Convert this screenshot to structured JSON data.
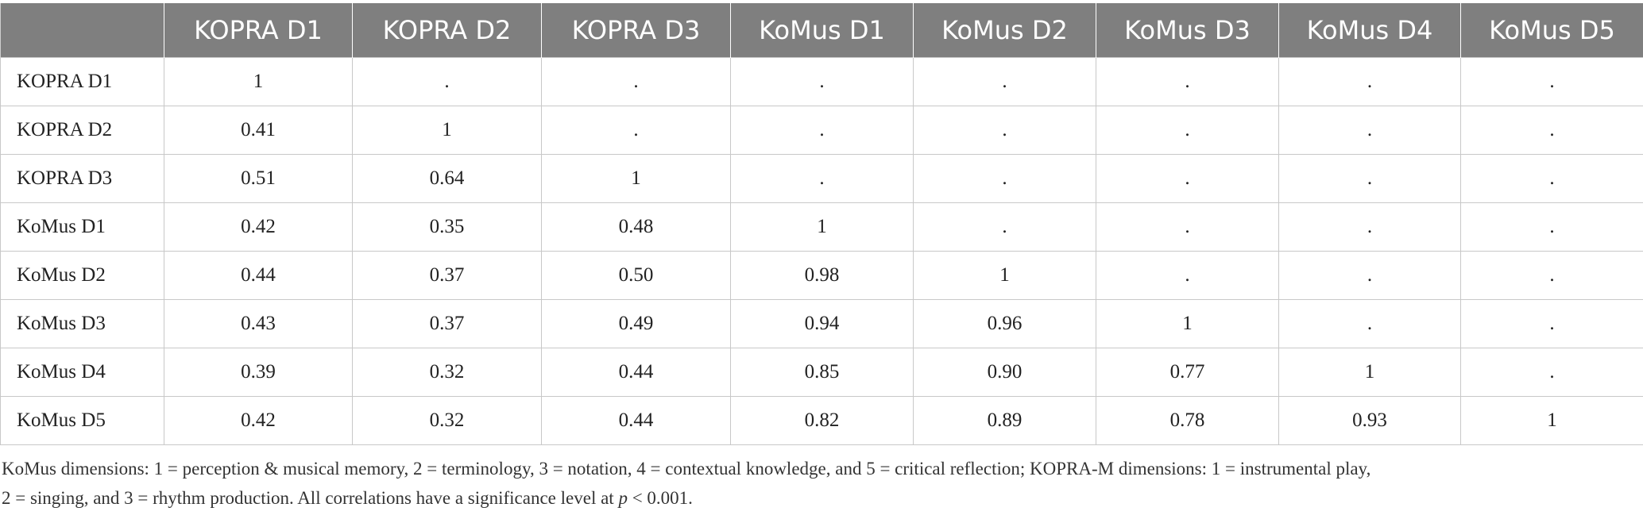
{
  "table": {
    "corner": "",
    "columns": [
      "KOPRA D1",
      "KOPRA D2",
      "KOPRA D3",
      "KoMus D1",
      "KoMus D2",
      "KoMus D3",
      "KoMus D4",
      "KoMus D5"
    ],
    "rows": [
      {
        "label": "KOPRA D1",
        "cells": [
          "1",
          ".",
          ".",
          ".",
          ".",
          ".",
          ".",
          "."
        ]
      },
      {
        "label": "KOPRA D2",
        "cells": [
          "0.41",
          "1",
          ".",
          ".",
          ".",
          ".",
          ".",
          "."
        ]
      },
      {
        "label": "KOPRA D3",
        "cells": [
          "0.51",
          "0.64",
          "1",
          ".",
          ".",
          ".",
          ".",
          "."
        ]
      },
      {
        "label": "KoMus D1",
        "cells": [
          "0.42",
          "0.35",
          "0.48",
          "1",
          ".",
          ".",
          ".",
          "."
        ]
      },
      {
        "label": "KoMus D2",
        "cells": [
          "0.44",
          "0.37",
          "0.50",
          "0.98",
          "1",
          ".",
          ".",
          "."
        ]
      },
      {
        "label": "KoMus D3",
        "cells": [
          "0.43",
          "0.37",
          "0.49",
          "0.94",
          "0.96",
          "1",
          ".",
          "."
        ]
      },
      {
        "label": "KoMus D4",
        "cells": [
          "0.39",
          "0.32",
          "0.44",
          "0.85",
          "0.90",
          "0.77",
          "1",
          "."
        ]
      },
      {
        "label": "KoMus D5",
        "cells": [
          "0.42",
          "0.32",
          "0.44",
          "0.82",
          "0.89",
          "0.78",
          "0.93",
          "1"
        ]
      }
    ]
  },
  "footnote": {
    "line1": "KoMus dimensions: 1 = perception & musical memory, 2 = terminology, 3 = notation, 4 = contextual knowledge, and 5 = critical reflection; KOPRA-M dimensions: 1 = instrumental play,",
    "line2_pre": "2 = singing, and 3 = rhythm production. All correlations have a significance level at ",
    "line2_var": "p",
    "line2_post": " < 0.001."
  },
  "colors": {
    "header_bg": "#7f7f7f",
    "header_text": "#ffffff",
    "grid": "#c8c8c8",
    "body_text": "#222222"
  }
}
